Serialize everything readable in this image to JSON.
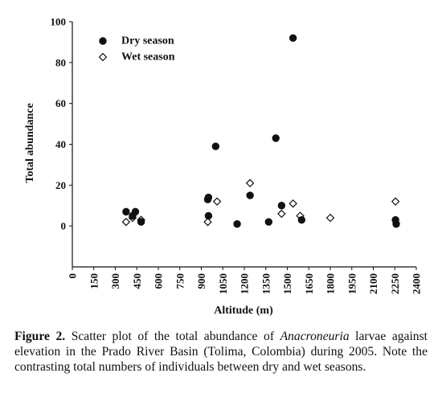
{
  "chart_data": {
    "type": "scatter",
    "xlabel": "Altitude (m)",
    "ylabel": "Total abundance",
    "xlim": [
      0,
      2400
    ],
    "ylim": [
      -20,
      100
    ],
    "x_ticks": [
      0,
      150,
      300,
      450,
      600,
      750,
      900,
      1050,
      1200,
      1350,
      1500,
      1650,
      1800,
      1950,
      2100,
      2250,
      2400
    ],
    "y_ticks": [
      0,
      20,
      40,
      60,
      80,
      100
    ],
    "grid": false,
    "legend_position": "top-left",
    "series": [
      {
        "name": "Dry season",
        "marker": "filled-circle",
        "color": "#111111",
        "points": [
          {
            "x": 375,
            "y": 7
          },
          {
            "x": 420,
            "y": 5
          },
          {
            "x": 440,
            "y": 7
          },
          {
            "x": 480,
            "y": 2
          },
          {
            "x": 945,
            "y": 13
          },
          {
            "x": 950,
            "y": 14
          },
          {
            "x": 950,
            "y": 5
          },
          {
            "x": 1000,
            "y": 39
          },
          {
            "x": 1150,
            "y": 1
          },
          {
            "x": 1240,
            "y": 15
          },
          {
            "x": 1370,
            "y": 2
          },
          {
            "x": 1420,
            "y": 43
          },
          {
            "x": 1460,
            "y": 10
          },
          {
            "x": 1540,
            "y": 92
          },
          {
            "x": 1600,
            "y": 3
          },
          {
            "x": 2255,
            "y": 3
          },
          {
            "x": 2260,
            "y": 1
          }
        ]
      },
      {
        "name": "Wet season",
        "marker": "open-diamond",
        "color": "#111111",
        "points": [
          {
            "x": 375,
            "y": 2
          },
          {
            "x": 420,
            "y": 4
          },
          {
            "x": 480,
            "y": 3
          },
          {
            "x": 945,
            "y": 2
          },
          {
            "x": 1010,
            "y": 12
          },
          {
            "x": 1240,
            "y": 21
          },
          {
            "x": 1460,
            "y": 6
          },
          {
            "x": 1540,
            "y": 11
          },
          {
            "x": 1590,
            "y": 5
          },
          {
            "x": 1800,
            "y": 4
          },
          {
            "x": 2255,
            "y": 12
          }
        ]
      }
    ]
  },
  "caption": {
    "label": "Figure 2.",
    "text_before": " Scatter plot of the total abundance of ",
    "italic": "Anacroneuria",
    "text_after": " larvae against elevation in the Prado River Basin (Tolima, Colombia) during 2005. Note the contrasting total numbers of individuals between dry and wet seasons."
  }
}
